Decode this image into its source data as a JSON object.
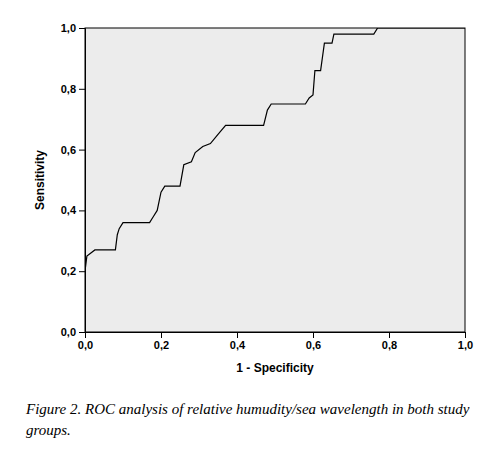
{
  "chart_data": {
    "type": "line",
    "title": "Figure 2. ROC analysis of relative humudity/sea wavelength in both study groups.",
    "x_label": "1 - Specificity",
    "y_label": "Sensitivity",
    "x": [
      0.0,
      0.0,
      0.005,
      0.026,
      0.08,
      0.085,
      0.09,
      0.1,
      0.17,
      0.18,
      0.19,
      0.2,
      0.21,
      0.25,
      0.26,
      0.28,
      0.29,
      0.31,
      0.33,
      0.35,
      0.37,
      0.47,
      0.48,
      0.49,
      0.58,
      0.59,
      0.6,
      0.605,
      0.62,
      0.63,
      0.65,
      0.655,
      0.76,
      0.77,
      1.0
    ],
    "values": [
      0.0,
      0.2,
      0.25,
      0.27,
      0.27,
      0.32,
      0.34,
      0.36,
      0.36,
      0.38,
      0.4,
      0.46,
      0.48,
      0.48,
      0.55,
      0.56,
      0.59,
      0.61,
      0.62,
      0.65,
      0.68,
      0.68,
      0.73,
      0.75,
      0.75,
      0.77,
      0.78,
      0.86,
      0.86,
      0.95,
      0.95,
      0.98,
      0.98,
      1.0,
      1.0
    ],
    "color": "#000000",
    "xlim": [
      0,
      1
    ],
    "ylim": [
      0,
      1
    ],
    "xticks": [
      {
        "value": 0,
        "label": "0,0"
      },
      {
        "value": 0.2,
        "label": "0,2"
      },
      {
        "value": 0.4,
        "label": "0,4"
      },
      {
        "value": 0.6,
        "label": "0,6"
      },
      {
        "value": 0.8,
        "label": "0,8"
      },
      {
        "value": 1,
        "label": "1,0"
      }
    ],
    "yticks": [
      {
        "value": 0,
        "label": "0,0"
      },
      {
        "value": 0.2,
        "label": "0,2"
      },
      {
        "value": 0.4,
        "label": "0,4"
      },
      {
        "value": 0.6,
        "label": "0,6"
      },
      {
        "value": 0.8,
        "label": "0,8"
      },
      {
        "value": 1,
        "label": "1,0"
      }
    ],
    "grid": false
  }
}
